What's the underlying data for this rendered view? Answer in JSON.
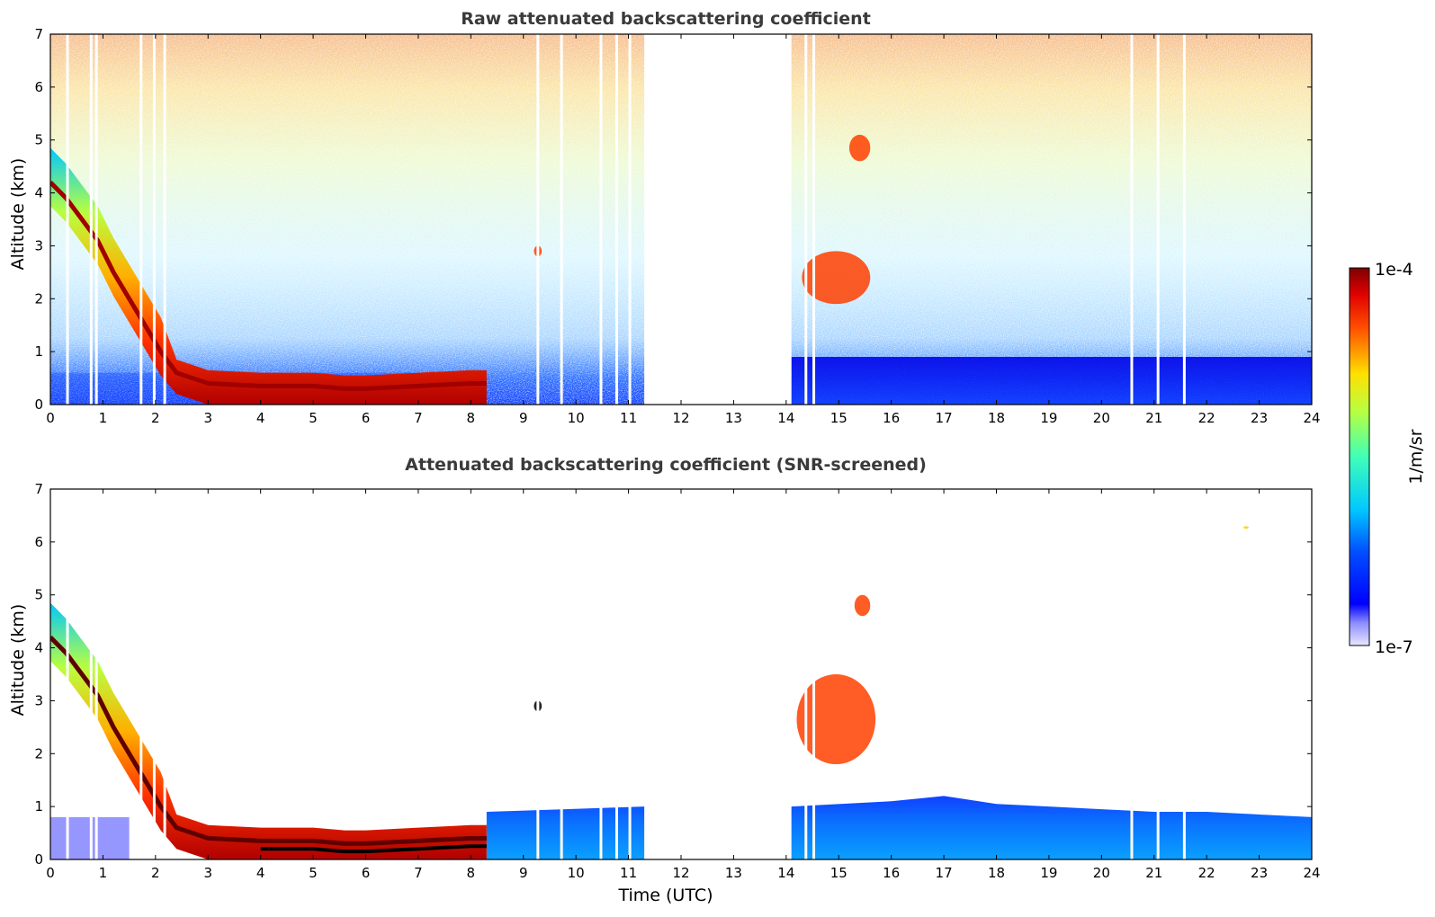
{
  "chart_data": [
    {
      "type": "heatmap",
      "title": "Raw attenuated backscattering coefficient",
      "xlabel": "",
      "ylabel": "Altitude (km)",
      "xlim": [
        0,
        24
      ],
      "ylim": [
        0,
        7
      ],
      "xticks": [
        0,
        1,
        2,
        3,
        4,
        5,
        6,
        7,
        8,
        9,
        10,
        11,
        12,
        13,
        14,
        15,
        16,
        17,
        18,
        19,
        20,
        21,
        22,
        23,
        24
      ],
      "yticks": [
        0,
        1,
        2,
        3,
        4,
        5,
        6,
        7
      ],
      "gap": [
        11.3,
        14.1
      ],
      "cloud_layer": [
        [
          0.0,
          4.1
        ],
        [
          0.3,
          3.8
        ],
        [
          0.6,
          3.4
        ],
        [
          0.9,
          3.0
        ],
        [
          1.2,
          2.4
        ],
        [
          1.5,
          1.9
        ],
        [
          1.8,
          1.4
        ],
        [
          2.1,
          0.9
        ],
        [
          2.4,
          0.5
        ],
        [
          3.0,
          0.3
        ],
        [
          4.0,
          0.25
        ],
        [
          5.0,
          0.25
        ],
        [
          5.6,
          0.2
        ],
        [
          6.0,
          0.2
        ],
        [
          7.0,
          0.25
        ],
        [
          8.0,
          0.3
        ],
        [
          8.3,
          0.3
        ]
      ],
      "features": [
        {
          "time": [
            14.3,
            15.6
          ],
          "altitude": [
            1.9,
            2.9
          ],
          "intensity": "high"
        },
        {
          "time": [
            15.2,
            15.6
          ],
          "altitude": [
            4.6,
            5.1
          ],
          "intensity": "high"
        },
        {
          "time": [
            9.2,
            9.35
          ],
          "altitude": [
            2.8,
            3.0
          ],
          "intensity": "high"
        }
      ]
    },
    {
      "type": "heatmap",
      "title": "Attenuated backscattering coefficient (SNR-screened)",
      "xlabel": "Time (UTC)",
      "ylabel": "Altitude (km)",
      "xlim": [
        0,
        24
      ],
      "ylim": [
        0,
        7
      ],
      "xticks": [
        0,
        1,
        2,
        3,
        4,
        5,
        6,
        7,
        8,
        9,
        10,
        11,
        12,
        13,
        14,
        15,
        16,
        17,
        18,
        19,
        20,
        21,
        22,
        23,
        24
      ],
      "yticks": [
        0,
        1,
        2,
        3,
        4,
        5,
        6,
        7
      ],
      "gap": [
        11.3,
        14.1
      ],
      "cloud_layer": [
        [
          0.0,
          4.1
        ],
        [
          0.3,
          3.8
        ],
        [
          0.6,
          3.4
        ],
        [
          0.9,
          3.0
        ],
        [
          1.2,
          2.4
        ],
        [
          1.5,
          1.9
        ],
        [
          1.8,
          1.4
        ],
        [
          2.1,
          0.9
        ],
        [
          2.4,
          0.5
        ],
        [
          3.0,
          0.3
        ],
        [
          4.0,
          0.25
        ],
        [
          5.0,
          0.25
        ],
        [
          5.6,
          0.2
        ],
        [
          6.0,
          0.2
        ],
        [
          7.0,
          0.25
        ],
        [
          8.0,
          0.3
        ],
        [
          8.3,
          0.3
        ]
      ],
      "boundary_layer_top": [
        [
          8.3,
          0.9
        ],
        [
          11.3,
          1.0
        ],
        [
          14.1,
          1.0
        ],
        [
          16,
          1.1
        ],
        [
          17,
          1.2
        ],
        [
          18,
          1.05
        ],
        [
          19,
          1.0
        ],
        [
          20,
          0.95
        ],
        [
          21,
          0.9
        ],
        [
          22,
          0.9
        ],
        [
          23,
          0.85
        ],
        [
          24,
          0.8
        ]
      ],
      "features": [
        {
          "time": [
            14.2,
            15.7
          ],
          "altitude": [
            1.8,
            3.5
          ],
          "intensity": "medium-high"
        },
        {
          "time": [
            15.3,
            15.6
          ],
          "altitude": [
            4.6,
            5.0
          ],
          "intensity": "high"
        },
        {
          "time": [
            9.2,
            9.35
          ],
          "altitude": [
            2.8,
            3.0
          ],
          "intensity": "very high"
        },
        {
          "time": [
            22.7,
            22.8
          ],
          "altitude": [
            6.25,
            6.3
          ],
          "intensity": "medium"
        }
      ]
    }
  ],
  "colorbar": {
    "max_label": "1e-4",
    "min_label": "1e-7",
    "unit_label": "1/m/sr",
    "scale": "log",
    "range": [
      1e-07,
      0.0001
    ]
  }
}
